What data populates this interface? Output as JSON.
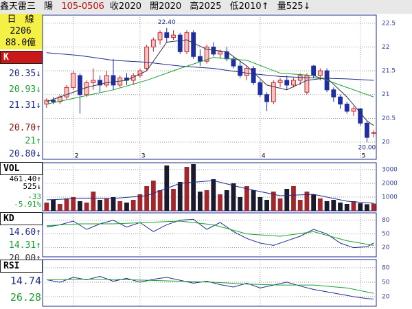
{
  "header": {
    "name": "鑫天雷三",
    "kind": "陽",
    "date": "105-0506",
    "close": "收2020",
    "open": "開2020",
    "high": "高2025",
    "low": "低2010↑",
    "volume": "量525↓"
  },
  "left_panel": {
    "period": "日　線",
    "code": "2206",
    "amount": "88.0億",
    "k_title": "K",
    "ma_values": [
      "20.35↓",
      "20.93↓",
      "21.31↓"
    ],
    "price_values": [
      "20.70↑",
      "21↑",
      "20.80↓"
    ],
    "vol_title": "VOL",
    "vol_values": [
      "461.40↑",
      "525↓"
    ],
    "change": "-33",
    "change_pct": "-5.91%",
    "kd_title": "KD",
    "kd_values": [
      "14.60↑",
      "14.31↑",
      "20.00↑"
    ],
    "rsi_title": "RSI",
    "rsi_values": [
      "14.74",
      "26.28"
    ]
  },
  "chart_data": [
    {
      "type": "candlestick",
      "up_color": "#d0202a",
      "down_color": "#1f2fa0",
      "categories": [
        null,
        null,
        null,
        null,
        "2",
        null,
        null,
        null,
        null,
        null,
        null,
        null,
        null,
        null,
        "3",
        null,
        null,
        null,
        null,
        null,
        null,
        null,
        null,
        null,
        null,
        null,
        null,
        null,
        null,
        null,
        null,
        null,
        "4",
        null,
        null,
        null,
        null,
        null,
        null,
        null,
        null,
        null,
        null,
        null,
        null,
        null,
        null,
        "5",
        null,
        null
      ],
      "open": [
        20.8,
        20.88,
        20.85,
        20.95,
        21.15,
        21.4,
        21.0,
        21.25,
        21.3,
        21.2,
        21.4,
        21.2,
        21.35,
        21.3,
        21.4,
        21.55,
        22.0,
        22.15,
        22.3,
        22.2,
        22.25,
        21.9,
        22.3,
        21.8,
        21.7,
        22.0,
        21.85,
        21.9,
        21.75,
        21.6,
        21.4,
        21.55,
        21.25,
        21.0,
        20.85,
        21.25,
        21.3,
        21.2,
        21.3,
        21.05,
        21.6,
        21.4,
        21.5,
        21.1,
        20.95,
        20.8,
        20.65,
        20.7,
        20.4,
        20.2
      ],
      "high": [
        20.92,
        20.95,
        21.0,
        21.2,
        21.5,
        21.45,
        21.3,
        21.55,
        21.4,
        21.5,
        21.75,
        21.4,
        21.45,
        21.45,
        21.55,
        22.05,
        22.2,
        22.35,
        22.4,
        22.35,
        22.3,
        22.35,
        22.35,
        21.95,
        22.05,
        22.1,
        21.95,
        22.0,
        21.8,
        21.7,
        21.6,
        21.6,
        21.3,
        21.05,
        21.3,
        21.35,
        21.4,
        21.35,
        21.45,
        21.45,
        21.62,
        21.55,
        21.55,
        21.15,
        21.0,
        20.85,
        20.75,
        20.72,
        20.45,
        20.25
      ],
      "low": [
        20.72,
        20.8,
        20.8,
        20.9,
        21.1,
        20.6,
        20.95,
        21.1,
        21.05,
        21.15,
        21.1,
        21.15,
        21.2,
        21.2,
        21.35,
        21.5,
        21.9,
        22.05,
        22.1,
        22.15,
        21.85,
        21.85,
        21.75,
        21.6,
        21.65,
        21.8,
        21.75,
        21.7,
        21.55,
        21.35,
        21.3,
        21.2,
        20.95,
        20.65,
        20.8,
        21.15,
        21.1,
        21.15,
        21.2,
        21.0,
        21.35,
        21.3,
        21.05,
        20.85,
        20.7,
        20.6,
        20.55,
        20.35,
        20.0,
        20.1
      ],
      "close": [
        20.88,
        20.85,
        20.95,
        21.15,
        21.45,
        21.0,
        21.25,
        21.3,
        21.2,
        21.4,
        21.2,
        21.35,
        21.3,
        21.4,
        21.5,
        22.0,
        22.15,
        22.3,
        22.2,
        22.25,
        21.9,
        22.3,
        21.8,
        21.7,
        22.0,
        21.85,
        21.9,
        21.75,
        21.6,
        21.4,
        21.55,
        21.25,
        21.0,
        20.85,
        21.25,
        21.3,
        21.2,
        21.3,
        21.4,
        21.4,
        21.4,
        21.5,
        21.1,
        20.95,
        20.8,
        20.65,
        20.7,
        20.4,
        20.1,
        20.2
      ],
      "lines": [
        {
          "color": "#1c2a8c",
          "x": [
            0,
            5,
            10,
            15,
            20,
            25,
            30,
            35,
            40,
            45,
            49
          ],
          "values": [
            21.88,
            21.82,
            21.72,
            21.68,
            21.6,
            21.55,
            21.45,
            21.38,
            21.35,
            21.33,
            21.3
          ]
        },
        {
          "color": "#18a030",
          "x": [
            0,
            5,
            10,
            15,
            20,
            25,
            30,
            35,
            40,
            45,
            49
          ],
          "values": [
            20.8,
            20.95,
            21.1,
            21.3,
            21.55,
            21.78,
            21.72,
            21.45,
            21.4,
            21.15,
            20.95
          ]
        },
        {
          "color": "#333344",
          "x": [
            0,
            3,
            6,
            9,
            12,
            15,
            18,
            21,
            24,
            27,
            30,
            33,
            36,
            39,
            42,
            45,
            48,
            49
          ],
          "values": [
            20.85,
            21.0,
            21.15,
            21.25,
            21.3,
            21.5,
            22.1,
            22.15,
            21.95,
            21.9,
            21.6,
            21.2,
            21.1,
            21.3,
            21.35,
            20.95,
            20.45,
            20.35
          ]
        }
      ],
      "annotations": [
        {
          "x": 18,
          "value": 22.4,
          "label": "22.40"
        },
        {
          "x": 48,
          "value": 20.0,
          "label": "20.00"
        }
      ],
      "ylim": [
        19.64,
        22.67
      ],
      "yticks": [
        20,
        20.5,
        21,
        21.5,
        22,
        22.5
      ],
      "grid": true
    },
    {
      "type": "volume",
      "up_color": "#a0282c",
      "down_color": "#1a1a2e",
      "values": [
        600,
        800,
        500,
        900,
        1000,
        700,
        600,
        1400,
        800,
        900,
        1000,
        700,
        600,
        800,
        1200,
        1800,
        2200,
        1500,
        3300,
        1600,
        2100,
        3200,
        3400,
        1400,
        1500,
        2300,
        1200,
        1500,
        2000,
        1000,
        1800,
        1500,
        1000,
        800,
        1400,
        900,
        1600,
        1800,
        800,
        1400,
        1200,
        900,
        700,
        800,
        600,
        500,
        700,
        550,
        480,
        525
      ],
      "lines": [
        {
          "color": "#1c2a8c",
          "x": [
            0,
            5,
            10,
            15,
            20,
            25,
            30,
            35,
            40,
            45,
            49
          ],
          "values": [
            800,
            900,
            900,
            1100,
            2000,
            2200,
            1600,
            1100,
            1200,
            700,
            550
          ]
        }
      ],
      "ylim": [
        0,
        3500
      ],
      "yticks": [
        1000,
        2000,
        3000
      ],
      "grid": true
    },
    {
      "type": "line",
      "lines": [
        {
          "color": "#1c2a8c",
          "x": [
            0,
            2,
            4,
            6,
            8,
            10,
            12,
            14,
            16,
            18,
            20,
            22,
            24,
            26,
            28,
            30,
            32,
            34,
            36,
            38,
            40,
            42,
            44,
            46,
            48,
            49
          ],
          "values": [
            65,
            70,
            78,
            60,
            72,
            80,
            65,
            75,
            55,
            70,
            80,
            82,
            60,
            75,
            55,
            40,
            30,
            25,
            35,
            45,
            60,
            50,
            30,
            20,
            22,
            30
          ]
        },
        {
          "color": "#18a030",
          "x": [
            0,
            5,
            10,
            15,
            20,
            25,
            30,
            35,
            40,
            45,
            49
          ],
          "values": [
            68,
            72,
            72,
            75,
            78,
            70,
            50,
            45,
            55,
            35,
            25
          ]
        }
      ],
      "ylim": [
        0,
        96
      ],
      "yticks": [
        20,
        50,
        80
      ],
      "grid": true
    },
    {
      "type": "line",
      "lines": [
        {
          "color": "#1c2a8c",
          "x": [
            0,
            2,
            4,
            6,
            8,
            10,
            12,
            14,
            16,
            18,
            20,
            22,
            24,
            26,
            28,
            30,
            32,
            34,
            36,
            38,
            40,
            42,
            44,
            46,
            48,
            49
          ],
          "values": [
            55,
            50,
            60,
            55,
            62,
            52,
            58,
            50,
            56,
            60,
            54,
            48,
            52,
            45,
            40,
            48,
            38,
            44,
            50,
            42,
            35,
            30,
            25,
            20,
            16,
            15
          ]
        },
        {
          "color": "#18a030",
          "x": [
            0,
            5,
            10,
            15,
            20,
            25,
            30,
            35,
            40,
            45,
            49
          ],
          "values": [
            55,
            56,
            56,
            54,
            52,
            50,
            46,
            44,
            44,
            38,
            27
          ]
        }
      ],
      "ylim": [
        0,
        97
      ],
      "yticks": [
        20,
        50,
        80
      ],
      "grid": true
    }
  ]
}
